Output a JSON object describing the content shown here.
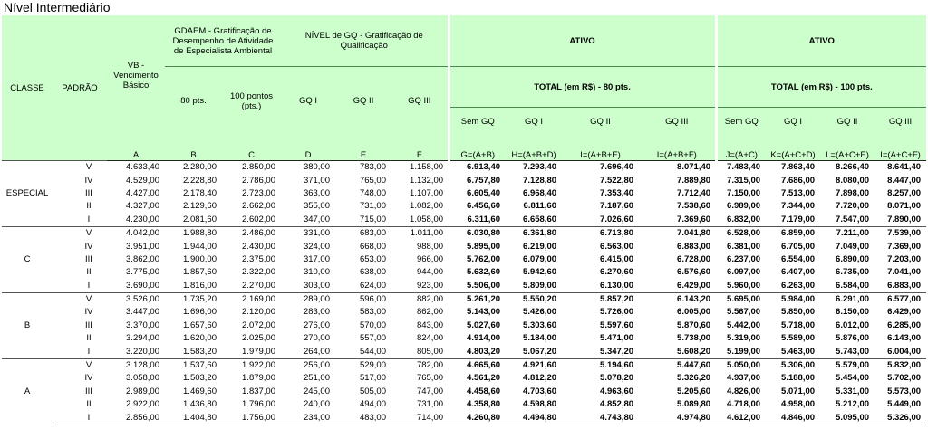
{
  "title": "Nível Intermediário",
  "header": {
    "classe": "CLASSE",
    "padrao": "PADRÃO",
    "vb": "VB - Vencimento Básico",
    "gdaem": "GDAEM - Gratificação de Desempenho de Atividade de Especialista Ambiental",
    "gdaem_cols": [
      "80 pts.",
      "100 pontos (pts.)"
    ],
    "gq": "NÍVEL de  GQ - Gratificação de Qualificação",
    "gq_cols": [
      "GQ I",
      "GQ II",
      "GQ III"
    ],
    "ativo": [
      {
        "label": "ATIVO",
        "total": "TOTAL (em R$) - 80 pts.",
        "cols": [
          "Sem GQ",
          "GQ I",
          "GQ II",
          "GQ III"
        ]
      },
      {
        "label": "ATIVO",
        "total": "TOTAL (em R$) - 100 pts.",
        "cols": [
          "Sem GQ",
          "GQ I",
          "GQ II",
          "GQ III"
        ]
      }
    ],
    "formulas": [
      "A",
      "B",
      "C",
      "D",
      "E",
      "F",
      "G=(A+B)",
      "H=(A+B+D)",
      "I=(A+B+E)",
      "I=(A+B+F)",
      "J=(A+C)",
      "K=(A+C+D)",
      "L=(A+C+E)",
      "I=(A+C+F)"
    ]
  },
  "table": {
    "groups": [
      {
        "classe": "ESPECIAL",
        "rows": [
          {
            "padrao": "V",
            "values": [
              "4.633,40",
              "2.280,00",
              "2.850,00",
              "380,00",
              "783,00",
              "1.158,00",
              "6.913,40",
              "7.293,40",
              "7.696,40",
              "8.071,40",
              "7.483,40",
              "7.863,40",
              "8.266,40",
              "8.641,40"
            ]
          },
          {
            "padrao": "IV",
            "values": [
              "4.529,00",
              "2.228,80",
              "2.786,00",
              "371,00",
              "765,00",
              "1.132,00",
              "6.757,80",
              "7.128,80",
              "7.522,80",
              "7.889,80",
              "7.315,00",
              "7.686,00",
              "8.080,00",
              "8.447,00"
            ]
          },
          {
            "padrao": "III",
            "values": [
              "4.427,00",
              "2.178,40",
              "2.723,00",
              "363,00",
              "748,00",
              "1.107,00",
              "6.605,40",
              "6.968,40",
              "7.353,40",
              "7.712,40",
              "7.150,00",
              "7.513,00",
              "7.898,00",
              "8.257,00"
            ]
          },
          {
            "padrao": "II",
            "values": [
              "4.327,00",
              "2.129,60",
              "2.662,00",
              "355,00",
              "731,00",
              "1.082,00",
              "6.456,60",
              "6.811,60",
              "7.187,60",
              "7.538,60",
              "6.989,00",
              "7.344,00",
              "7.720,00",
              "8.071,00"
            ]
          },
          {
            "padrao": "I",
            "values": [
              "4.230,00",
              "2.081,60",
              "2.602,00",
              "347,00",
              "715,00",
              "1.058,00",
              "6.311,60",
              "6.658,60",
              "7.026,60",
              "7.369,60",
              "6.832,00",
              "7.179,00",
              "7.547,00",
              "7.890,00"
            ]
          }
        ]
      },
      {
        "classe": "C",
        "rows": [
          {
            "padrao": "V",
            "values": [
              "4.042,00",
              "1.988,80",
              "2.486,00",
              "331,00",
              "683,00",
              "1.011,00",
              "6.030,80",
              "6.361,80",
              "6.713,80",
              "7.041,80",
              "6.528,00",
              "6.859,00",
              "7.211,00",
              "7.539,00"
            ]
          },
          {
            "padrao": "IV",
            "values": [
              "3.951,00",
              "1.944,00",
              "2.430,00",
              "324,00",
              "668,00",
              "988,00",
              "5.895,00",
              "6.219,00",
              "6.563,00",
              "6.883,00",
              "6.381,00",
              "6.705,00",
              "7.049,00",
              "7.369,00"
            ]
          },
          {
            "padrao": "III",
            "values": [
              "3.862,00",
              "1.900,00",
              "2.375,00",
              "317,00",
              "653,00",
              "966,00",
              "5.762,00",
              "6.079,00",
              "6.415,00",
              "6.728,00",
              "6.237,00",
              "6.554,00",
              "6.890,00",
              "7.203,00"
            ]
          },
          {
            "padrao": "II",
            "values": [
              "3.775,00",
              "1.857,60",
              "2.322,00",
              "310,00",
              "638,00",
              "944,00",
              "5.632,60",
              "5.942,60",
              "6.270,60",
              "6.576,60",
              "6.097,00",
              "6.407,00",
              "6.735,00",
              "7.041,00"
            ]
          },
          {
            "padrao": "I",
            "values": [
              "3.690,00",
              "1.816,00",
              "2.270,00",
              "303,00",
              "624,00",
              "923,00",
              "5.506,00",
              "5.809,00",
              "6.130,00",
              "6.429,00",
              "5.960,00",
              "6.263,00",
              "6.584,00",
              "6.883,00"
            ]
          }
        ]
      },
      {
        "classe": "B",
        "rows": [
          {
            "padrao": "V",
            "values": [
              "3.526,00",
              "1.735,20",
              "2.169,00",
              "289,00",
              "596,00",
              "882,00",
              "5.261,20",
              "5.550,20",
              "5.857,20",
              "6.143,20",
              "5.695,00",
              "5.984,00",
              "6.291,00",
              "6.577,00"
            ]
          },
          {
            "padrao": "IV",
            "values": [
              "3.447,00",
              "1.696,00",
              "2.120,00",
              "283,00",
              "583,00",
              "862,00",
              "5.143,00",
              "5.426,00",
              "5.726,00",
              "6.005,00",
              "5.567,00",
              "5.850,00",
              "6.150,00",
              "6.429,00"
            ]
          },
          {
            "padrao": "III",
            "values": [
              "3.370,00",
              "1.657,60",
              "2.072,00",
              "276,00",
              "570,00",
              "843,00",
              "5.027,60",
              "5.303,60",
              "5.597,60",
              "5.870,60",
              "5.442,00",
              "5.718,00",
              "6.012,00",
              "6.285,00"
            ]
          },
          {
            "padrao": "II",
            "values": [
              "3.294,00",
              "1.620,00",
              "2.025,00",
              "270,00",
              "557,00",
              "824,00",
              "4.914,00",
              "5.184,00",
              "5.471,00",
              "5.738,00",
              "5.319,00",
              "5.589,00",
              "5.876,00",
              "6.143,00"
            ]
          },
          {
            "padrao": "I",
            "values": [
              "3.220,00",
              "1.583,20",
              "1.979,00",
              "264,00",
              "544,00",
              "805,00",
              "4.803,20",
              "5.067,20",
              "5.347,20",
              "5.608,20",
              "5.199,00",
              "5.463,00",
              "5.743,00",
              "6.004,00"
            ]
          }
        ]
      },
      {
        "classe": "A",
        "rows": [
          {
            "padrao": "V",
            "values": [
              "3.128,00",
              "1.537,60",
              "1.922,00",
              "256,00",
              "529,00",
              "782,00",
              "4.665,60",
              "4.921,60",
              "5.194,60",
              "5.447,60",
              "5.050,00",
              "5.306,00",
              "5.579,00",
              "5.832,00"
            ]
          },
          {
            "padrao": "IV",
            "values": [
              "3.058,00",
              "1.503,20",
              "1.879,00",
              "251,00",
              "517,00",
              "765,00",
              "4.561,20",
              "4.812,20",
              "5.078,20",
              "5.326,20",
              "4.937,00",
              "5.188,00",
              "5.454,00",
              "5.702,00"
            ]
          },
          {
            "padrao": "III",
            "values": [
              "2.989,00",
              "1.469,60",
              "1.837,00",
              "245,00",
              "505,00",
              "747,00",
              "4.458,60",
              "4.703,60",
              "4.963,60",
              "5.205,60",
              "4.826,00",
              "5.071,00",
              "5.331,00",
              "5.573,00"
            ]
          },
          {
            "padrao": "II",
            "values": [
              "2.922,00",
              "1.436,80",
              "1.796,00",
              "240,00",
              "494,00",
              "731,00",
              "4.358,80",
              "4.598,80",
              "4.852,80",
              "5.089,80",
              "4.718,00",
              "4.958,00",
              "5.212,00",
              "5.449,00"
            ]
          },
          {
            "padrao": "I",
            "values": [
              "2.856,00",
              "1.404,80",
              "1.756,00",
              "234,00",
              "483,00",
              "714,00",
              "4.260,80",
              "4.494,80",
              "4.743,80",
              "4.974,80",
              "4.612,00",
              "4.846,00",
              "5.095,00",
              "5.326,00"
            ]
          }
        ]
      }
    ]
  }
}
